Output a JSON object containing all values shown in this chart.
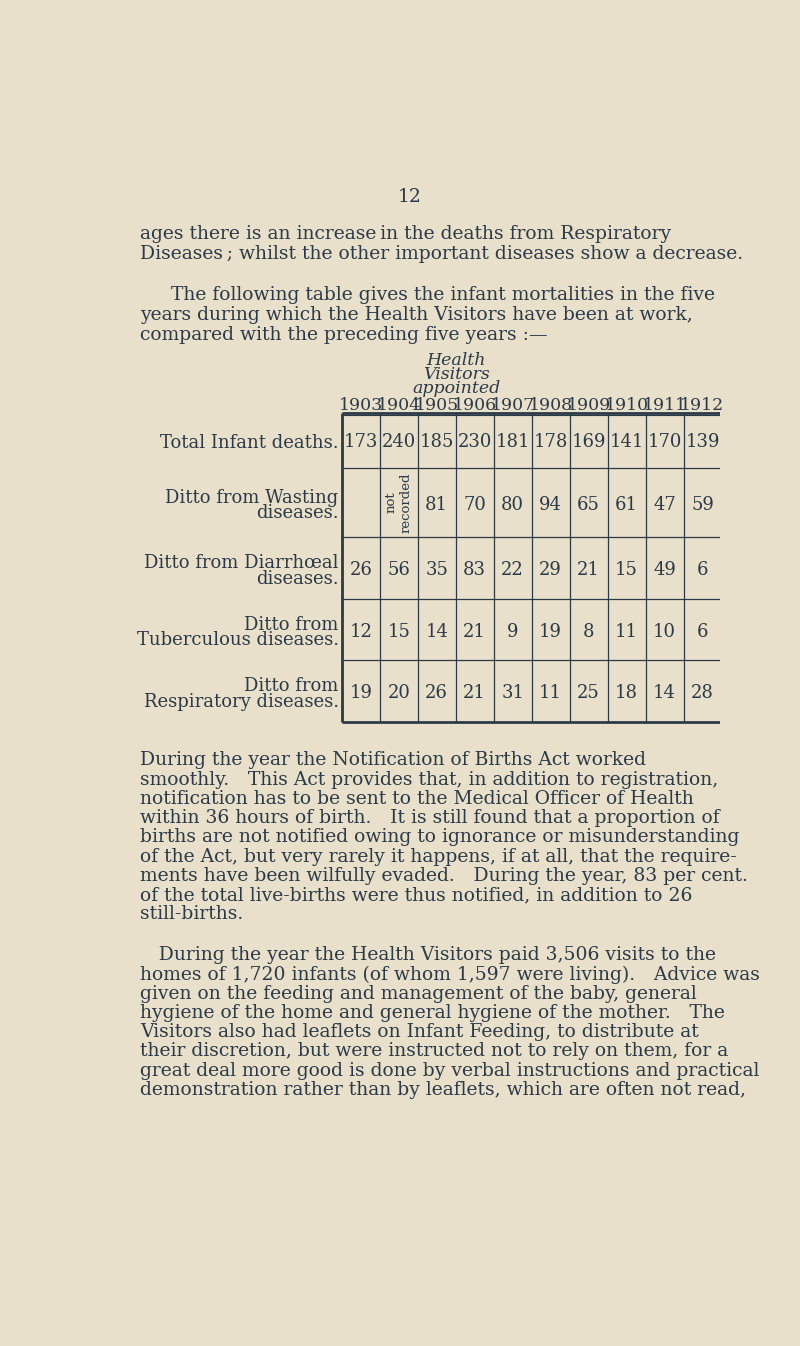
{
  "bg_color": "#e8e0ca",
  "text_color": "#2c3a47",
  "page_number": "12",
  "years": [
    "1903",
    "1904",
    "1905",
    "1906",
    "1907",
    "1908",
    "1909",
    "1910",
    "1911",
    "1912"
  ],
  "row_labels": [
    [
      "Total Infant deaths."
    ],
    [
      "Ditto from Wasting",
      "diseases."
    ],
    [
      "Ditto from Diarrhœal",
      "diseases."
    ],
    [
      "Ditto from",
      "Tuberculous diseases."
    ],
    [
      "Ditto from",
      "Respiratory diseases."
    ]
  ],
  "row_data": [
    [
      "173",
      "240",
      "185",
      "230",
      "181",
      "178",
      "169",
      "141",
      "170",
      "139"
    ],
    [
      "",
      "not\nrecorded",
      "81",
      "70",
      "80",
      "94",
      "65",
      "61",
      "47",
      "59"
    ],
    [
      "26",
      "56",
      "35",
      "83",
      "22",
      "29",
      "21",
      "15",
      "49",
      "6"
    ],
    [
      "12",
      "15",
      "14",
      "21",
      "9",
      "19",
      "8",
      "11",
      "10",
      "6"
    ],
    [
      "19",
      "20",
      "26",
      "21",
      "31",
      "11",
      "25",
      "18",
      "14",
      "28"
    ]
  ],
  "para1": [
    "ages there is an increase in the deaths from Respiratory",
    "Diseases ; whilst the other important diseases show a decrease."
  ],
  "para2": [
    "The following table gives the infant mortalities in the five",
    "years during which the Health Visitors have been at work,",
    "compared with the preceding five years :—"
  ],
  "para3": [
    "During the year the Notification of Births Act worked",
    "smoothly. This Act provides that, in addition to registration,",
    "notification has to be sent to the Medical Officer of Health",
    "within 36 hours of birth. It is still found that a proportion of",
    "births are not notified owing to ignorance or misunderstanding",
    "of the Act, but very rarely it happens, if at all, that the require-",
    "ments have been wilfully evaded. During the year, 83 per cent.",
    "of the total live-births were thus notified, in addition to 26",
    "still-births."
  ],
  "para4": [
    " During the year the Health Visitors paid 3,506 visits to the",
    "homes of 1,720 infants (of whom 1,597 were living). Advice was",
    "given on the feeding and management of the baby, general",
    "hygiene of the home and general hygiene of the mother. The",
    "Visitors also had leaflets on Infant Feeding, to distribute at",
    "their discretion, but were instructed not to rely on them, for a",
    "great deal more good is done by verbal instructions and practical",
    "demonstration rather than by leaflets, which are often not read,"
  ]
}
